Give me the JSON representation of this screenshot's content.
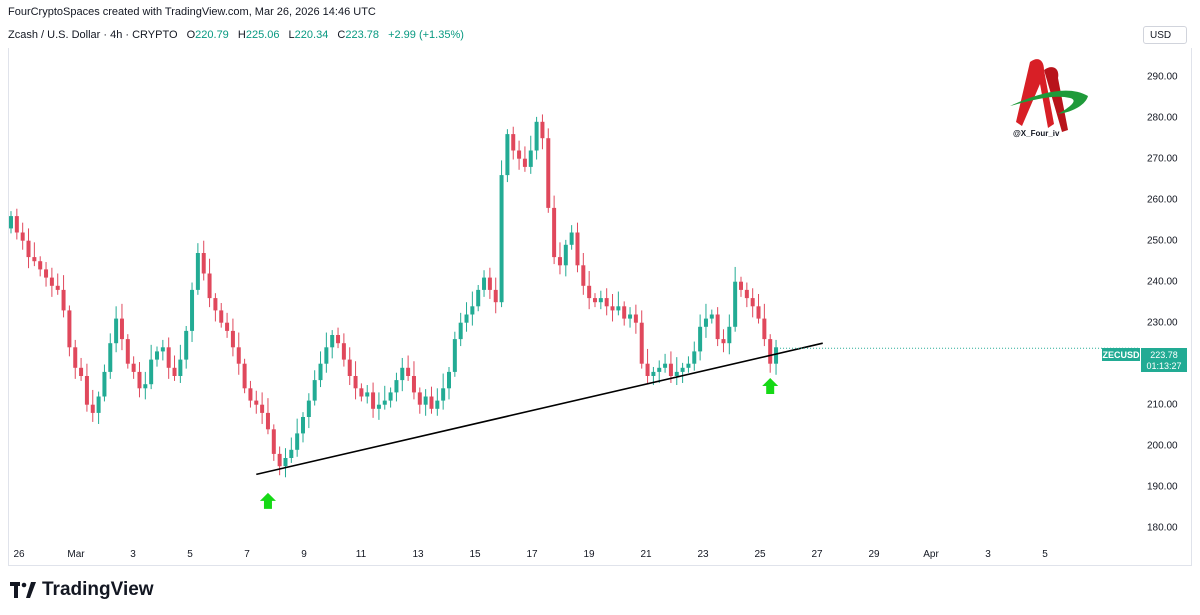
{
  "header": {
    "attribution": "FourCryptoSpaces created with TradingView.com, Mar 26, 2026 14:46 UTC",
    "symbol": "Zcash / U.S. Dollar · 4h · CRYPTO",
    "open_label": "O",
    "open": "220.79",
    "high_label": "H",
    "high": "225.06",
    "low_label": "L",
    "low": "220.34",
    "close_label": "C",
    "close": "223.78",
    "change": "+2.99 (+1.35%)",
    "currency": "USD"
  },
  "watermark": {
    "handle": "@X_Four_iv",
    "logo_icon": "red-green-a-logo-icon"
  },
  "footer": {
    "brand": "TradingView",
    "brand_icon": "tradingview-logo-icon"
  },
  "price_tag": {
    "symbol": "ZECUSD",
    "price": "223.78",
    "countdown": "01:13:27"
  },
  "colors": {
    "up": "#22ab94",
    "down": "#e0485c",
    "trendline": "#000000",
    "arrow": "#16d916"
  },
  "chart_data": {
    "type": "candlestick",
    "interval": "4h",
    "price_ticks": [
      "290.00",
      "280.00",
      "270.00",
      "260.00",
      "250.00",
      "240.00",
      "230.00",
      "220.00",
      "210.00",
      "200.00",
      "190.00",
      "180.00"
    ],
    "ylim": [
      177,
      297
    ],
    "x_ticks": [
      {
        "label": "26",
        "day": 0
      },
      {
        "label": "Mar",
        "day": 2
      },
      {
        "label": "3",
        "day": 4
      },
      {
        "label": "5",
        "day": 6
      },
      {
        "label": "7",
        "day": 8
      },
      {
        "label": "9",
        "day": 10
      },
      {
        "label": "11",
        "day": 12
      },
      {
        "label": "13",
        "day": 14
      },
      {
        "label": "15",
        "day": 16
      },
      {
        "label": "17",
        "day": 18
      },
      {
        "label": "19",
        "day": 20
      },
      {
        "label": "21",
        "day": 22
      },
      {
        "label": "23",
        "day": 24
      },
      {
        "label": "25",
        "day": 26
      },
      {
        "label": "27",
        "day": 28
      },
      {
        "label": "29",
        "day": 30
      },
      {
        "label": "Apr",
        "day": 32
      },
      {
        "label": "3",
        "day": 34
      },
      {
        "label": "5",
        "day": 36
      }
    ],
    "candle_closes": [
      256,
      252,
      250,
      246,
      245,
      243,
      241,
      239,
      238,
      233,
      224,
      219,
      217,
      210,
      208,
      212,
      218,
      225,
      231,
      226,
      220,
      218,
      214,
      215,
      221,
      223,
      224,
      219,
      217,
      221,
      228,
      238,
      247,
      242,
      236,
      233,
      230,
      228,
      224,
      220,
      214,
      211,
      210,
      208,
      204,
      198,
      195,
      197,
      199,
      203,
      207,
      211,
      216,
      220,
      224,
      227,
      225,
      221,
      217,
      214,
      212,
      213,
      209,
      210,
      211,
      213,
      216,
      219,
      217,
      213,
      210,
      212,
      209,
      211,
      214,
      218,
      226,
      230,
      232,
      234,
      238,
      241,
      238,
      235,
      266,
      276,
      272,
      270,
      268,
      272,
      279,
      275,
      258,
      246,
      244,
      249,
      252,
      244,
      239,
      236,
      235,
      236,
      234,
      233,
      234,
      231,
      232,
      230,
      220,
      217,
      218,
      219,
      220,
      217,
      218,
      219,
      220,
      223,
      229,
      231,
      232,
      226,
      225,
      229,
      240,
      238,
      236,
      234,
      231,
      226,
      220,
      224
    ],
    "trendline": {
      "from": {
        "candle": 42,
        "price": 193
      },
      "to": {
        "candle": 139,
        "price": 225
      }
    },
    "annotations": [
      {
        "type": "arrow-up",
        "candle": 44,
        "price": 188.5,
        "color": "#16d916"
      },
      {
        "type": "arrow-up",
        "candle": 130,
        "price": 216.5,
        "color": "#16d916"
      }
    ],
    "last_price": "223.78"
  }
}
